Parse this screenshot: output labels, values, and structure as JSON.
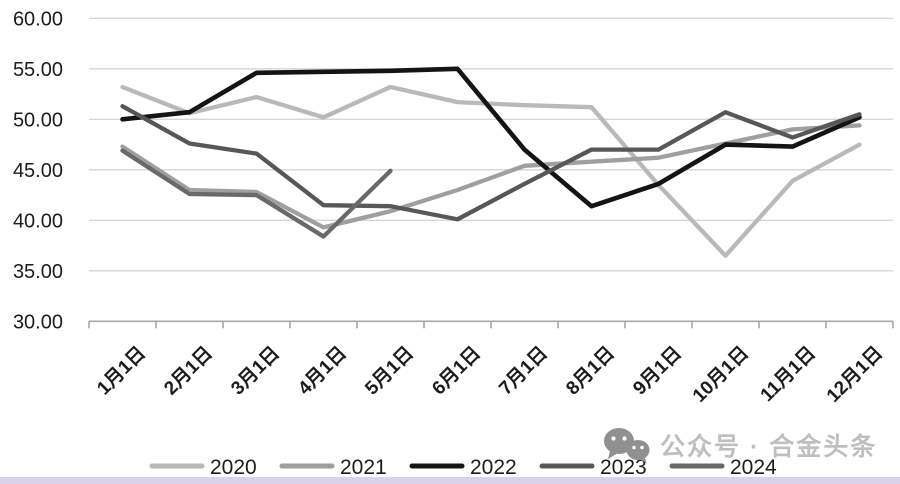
{
  "chart_data": {
    "type": "line",
    "title": "",
    "xlabel": "",
    "ylabel": "",
    "categories": [
      "1月1日",
      "2月1日",
      "3月1日",
      "4月1日",
      "5月1日",
      "6月1日",
      "7月1日",
      "8月1日",
      "9月1日",
      "10月1日",
      "11月1日",
      "12月1日"
    ],
    "series": [
      {
        "name": "2020",
        "color": "#b9b9b9",
        "values": [
          53.2,
          50.6,
          52.2,
          50.2,
          53.2,
          51.7,
          51.4,
          51.2,
          43.5,
          36.5,
          43.9,
          47.5
        ]
      },
      {
        "name": "2021",
        "color": "#9f9f9f",
        "values": [
          47.3,
          43.0,
          42.8,
          39.3,
          40.9,
          43.0,
          45.4,
          45.8,
          46.2,
          47.6,
          49.0,
          49.4
        ]
      },
      {
        "name": "2022",
        "color": "#141414",
        "values": [
          50.0,
          50.7,
          54.6,
          54.7,
          54.8,
          55.0,
          47.0,
          41.4,
          43.6,
          47.5,
          47.3,
          50.2
        ]
      },
      {
        "name": "2023",
        "color": "#575757",
        "values": [
          51.3,
          47.6,
          46.6,
          41.5,
          41.4,
          40.1,
          43.6,
          47.0,
          47.0,
          50.7,
          48.2,
          50.5
        ]
      },
      {
        "name": "2024",
        "color": "#696969",
        "values": [
          46.9,
          42.6,
          42.5,
          38.4,
          44.9,
          null,
          null,
          null,
          null,
          null,
          null,
          null
        ]
      }
    ],
    "ylim": [
      30,
      60
    ],
    "ytick_step": 5,
    "ytick_labels": [
      "60.00",
      "55.00",
      "50.00",
      "45.00",
      "40.00",
      "35.00",
      "30.00"
    ],
    "grid": true,
    "legend_position": "bottom"
  },
  "watermark": {
    "text": "公众号 · 合金头条",
    "icon": "wechat-icon"
  },
  "style": {
    "grid_color": "#d6d6d6",
    "axis_color": "#a6a6a6",
    "text_color": "#1c1c1c",
    "watermark_text_color": "#bfbfbf",
    "watermark_icon_color": "#909090",
    "bottom_bar_color": "#d9d2ec"
  }
}
